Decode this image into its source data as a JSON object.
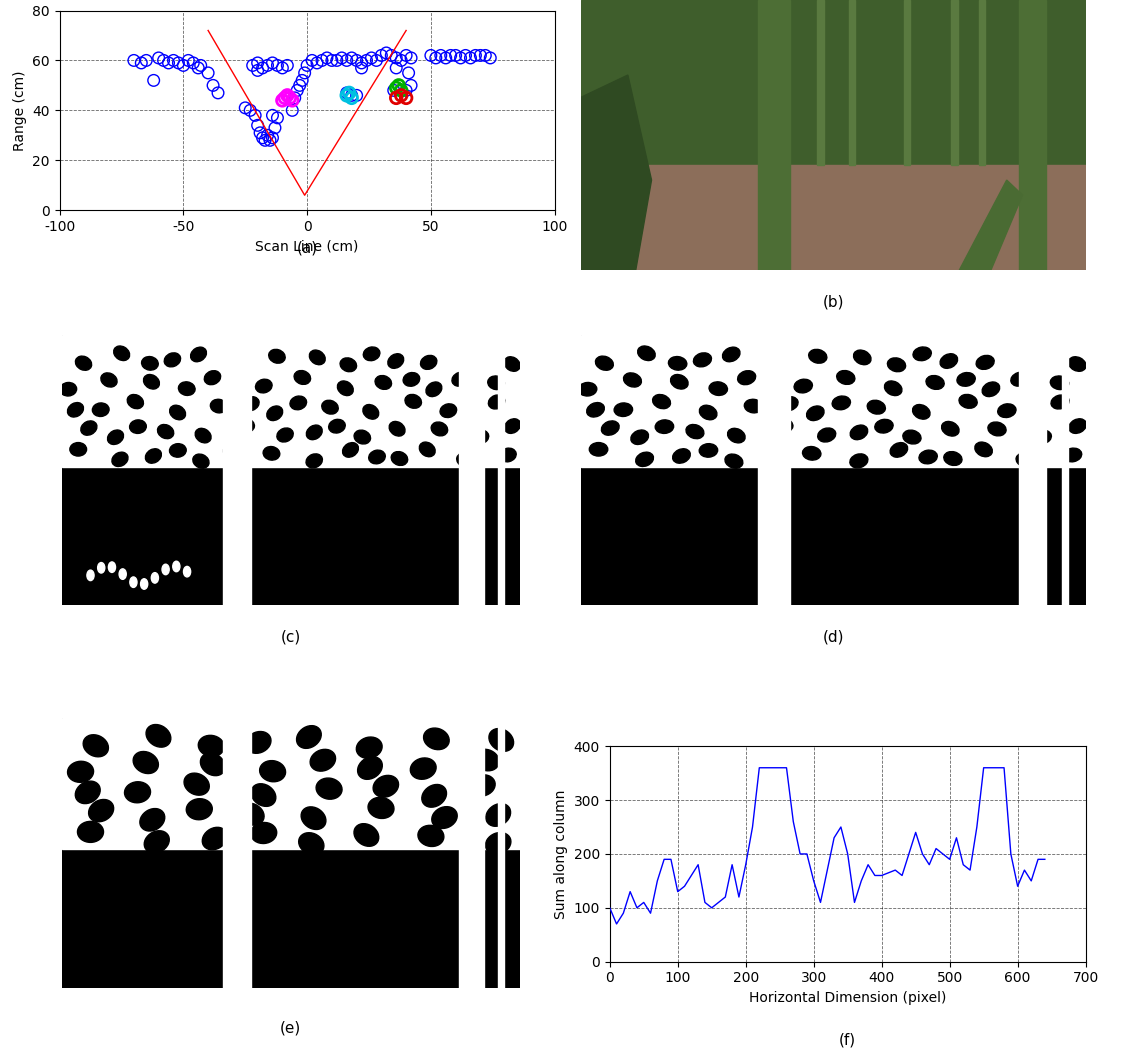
{
  "chart_data": [
    {
      "type": "scatter",
      "caption": "(a)",
      "x_label": "Scan Line (cm)",
      "y_label": "Range (cm)",
      "xlim": [
        -100,
        100
      ],
      "xticks": [
        -100,
        -50,
        0,
        50,
        100
      ],
      "ylim": [
        0,
        80
      ],
      "yticks": [
        0,
        20,
        40,
        60,
        80
      ],
      "grid": true,
      "series": [
        {
          "type": "scatter",
          "color": "#0000ff",
          "marker": "o",
          "x": [
            -70,
            -67,
            -65,
            -62,
            -60,
            -58,
            -56,
            -54,
            -52,
            -50,
            -48,
            -46,
            -44,
            -43,
            -40,
            -38,
            -36,
            -25,
            -23,
            -21,
            -20,
            -19,
            -18,
            -17,
            -16,
            -15,
            -14,
            -13,
            -12,
            -14,
            -22,
            -20,
            -18,
            -16,
            -14,
            -12,
            -10,
            -8,
            -20,
            -6,
            -5,
            -4,
            -3,
            -2,
            -1,
            0,
            2,
            4,
            6,
            8,
            10,
            12,
            14,
            16,
            18,
            20,
            22,
            24,
            26,
            28,
            30,
            32,
            34,
            36,
            38,
            40,
            42,
            41,
            42,
            40,
            35,
            16,
            18,
            20,
            22,
            36,
            50,
            52,
            54,
            56,
            58,
            60,
            62,
            64,
            66,
            68,
            70,
            72,
            74
          ],
          "values": [
            60,
            59,
            60,
            52,
            61,
            60,
            59,
            60,
            59,
            58,
            60,
            59,
            57,
            58,
            55,
            50,
            47,
            41,
            40,
            38,
            34,
            31,
            29,
            28,
            30,
            28,
            29,
            33,
            37,
            38,
            58,
            59,
            57,
            58,
            59,
            58,
            57,
            58,
            56,
            40,
            45,
            48,
            50,
            52,
            55,
            58,
            60,
            59,
            60,
            61,
            60,
            60,
            61,
            60,
            61,
            60,
            59,
            60,
            61,
            60,
            62,
            63,
            62,
            61,
            60,
            62,
            61,
            55,
            50,
            48,
            48,
            47,
            46,
            46,
            57,
            57,
            62,
            61,
            62,
            61,
            62,
            62,
            61,
            62,
            61,
            62,
            62,
            62,
            61
          ]
        },
        {
          "type": "scatter",
          "color": "#ff00ff",
          "marker": "o",
          "x": [
            -10,
            -9,
            -8,
            -7,
            -6
          ],
          "values": [
            44,
            45,
            46,
            45,
            44
          ]
        },
        {
          "type": "scatter",
          "color": "#00c0e0",
          "marker": "o",
          "x": [
            16,
            17,
            18
          ],
          "values": [
            46,
            47,
            45
          ]
        },
        {
          "type": "scatter",
          "color": "#00b000",
          "marker": "o",
          "x": [
            36,
            37,
            38
          ],
          "values": [
            49,
            50,
            48
          ]
        },
        {
          "type": "scatter",
          "color": "#e00000",
          "marker": "o",
          "x": [
            36,
            38,
            40
          ],
          "values": [
            45,
            46,
            45
          ]
        },
        {
          "type": "line",
          "color": "#ff0000",
          "x": [
            -40,
            -1,
            40
          ],
          "values": [
            72,
            6,
            72
          ]
        }
      ]
    },
    {
      "type": "line",
      "caption": "(f)",
      "x_label": "Horizontal Dimension (pixel)",
      "y_label": "Sum along column",
      "xlim": [
        0,
        700
      ],
      "xticks": [
        0,
        100,
        200,
        300,
        400,
        500,
        600,
        700
      ],
      "ylim": [
        0,
        400
      ],
      "yticks": [
        0,
        100,
        200,
        300,
        400
      ],
      "grid": true,
      "series": [
        {
          "type": "line",
          "color": "#0000ff",
          "x": [
            0,
            10,
            20,
            30,
            40,
            50,
            60,
            70,
            80,
            90,
            100,
            110,
            120,
            130,
            140,
            150,
            160,
            170,
            180,
            190,
            200,
            210,
            220,
            230,
            240,
            250,
            260,
            270,
            280,
            290,
            300,
            310,
            320,
            330,
            340,
            350,
            360,
            370,
            380,
            390,
            400,
            410,
            420,
            430,
            440,
            450,
            460,
            470,
            480,
            490,
            500,
            510,
            520,
            530,
            540,
            550,
            560,
            570,
            580,
            590,
            600,
            610,
            620,
            630,
            640
          ],
          "values": [
            100,
            70,
            90,
            130,
            100,
            110,
            90,
            150,
            190,
            190,
            130,
            140,
            160,
            180,
            110,
            100,
            110,
            120,
            180,
            120,
            180,
            250,
            360,
            360,
            360,
            360,
            360,
            260,
            200,
            200,
            150,
            110,
            170,
            230,
            250,
            200,
            110,
            150,
            180,
            160,
            160,
            165,
            170,
            160,
            200,
            240,
            200,
            180,
            210,
            200,
            190,
            230,
            180,
            170,
            250,
            360,
            360,
            360,
            360,
            200,
            140,
            170,
            150,
            190,
            190
          ]
        }
      ]
    }
  ],
  "images": [
    {
      "type": "photo",
      "caption": "(b)"
    },
    {
      "type": "binary",
      "caption": "(c)"
    },
    {
      "type": "binary",
      "caption": "(d)"
    },
    {
      "type": "binary",
      "caption": "(e)"
    }
  ]
}
